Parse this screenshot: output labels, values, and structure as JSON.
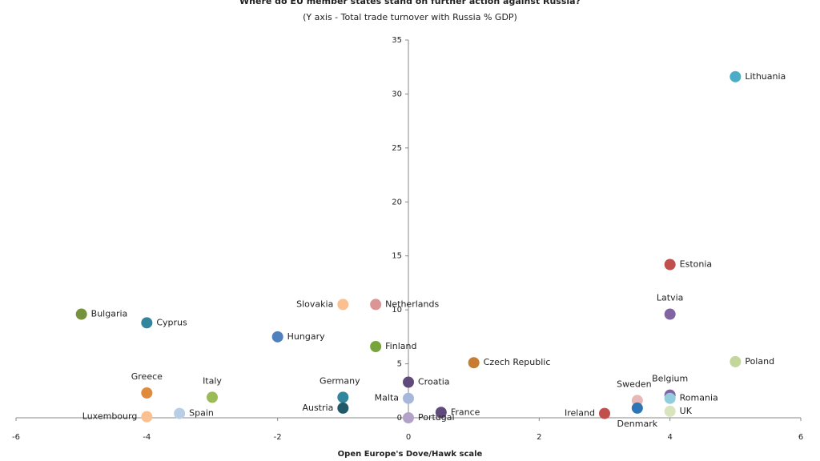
{
  "chart_data": {
    "type": "scatter",
    "title": "Where do EU member states stand on further action against Russia?",
    "subtitle": "(Y axis - Total trade turnover with Russia % GDP)",
    "x_label": "Open Europe's Dove/Hawk scale",
    "labels": [
      "Lithuania",
      "Estonia",
      "Latvia",
      "Poland",
      "Belgium",
      "Romania",
      "UK",
      "Sweden",
      "Denmark",
      "Ireland",
      "Czech Republic",
      "France",
      "Croatia",
      "Malta",
      "Portugal",
      "Netherlands",
      "Finland",
      "Slovakia",
      "Germany",
      "Austria",
      "Hungary",
      "Bulgaria",
      "Cyprus",
      "Italy",
      "Greece",
      "Spain",
      "Luxembourg"
    ],
    "x": [
      5,
      4,
      4,
      5,
      4,
      4,
      4,
      3.5,
      3.5,
      3,
      1,
      0.5,
      0,
      0,
      0,
      -0.5,
      -0.5,
      -1,
      -1,
      -1,
      -2,
      -5,
      -4,
      -3,
      -4,
      -3.5,
      -4
    ],
    "values": [
      31.6,
      14.2,
      9.6,
      5.2,
      2.1,
      1.8,
      0.6,
      1.6,
      0.9,
      0.4,
      5.1,
      0.5,
      3.3,
      1.8,
      0,
      10.5,
      6.6,
      10.5,
      1.9,
      0.9,
      7.5,
      9.6,
      8.8,
      1.9,
      2.3,
      0.4,
      0.1
    ],
    "colors": [
      "#4bacc6",
      "#c0504d",
      "#8064a2",
      "#c3d69b",
      "#8064a2",
      "#93cddd",
      "#d7e4bd",
      "#e6b9b8",
      "#2e75b6",
      "#c0504d",
      "#c77c30",
      "#604a7b",
      "#604a7b",
      "#a6b8d9",
      "#b3a2c7",
      "#d99694",
      "#77a53c",
      "#fac090",
      "#31859c",
      "#215968",
      "#4f81bd",
      "#76923c",
      "#31859c",
      "#9bbb59",
      "#e08a3c",
      "#b9cde5",
      "#fac08f"
    ],
    "xlim": [
      -6,
      6
    ],
    "xticks": [
      -6,
      -4,
      -2,
      0,
      2,
      4,
      6
    ],
    "ylim": [
      0,
      35
    ],
    "yticks": [
      0,
      5,
      10,
      15,
      20,
      25,
      30,
      35
    ]
  }
}
